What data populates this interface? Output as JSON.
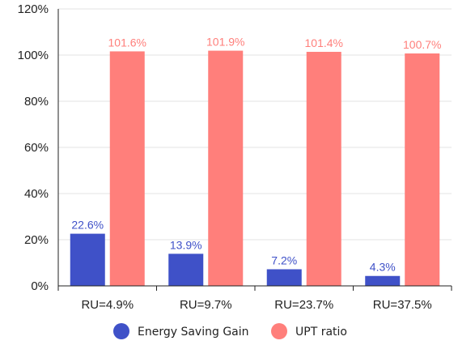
{
  "chart_data": {
    "type": "bar",
    "categories": [
      "RU=4.9%",
      "RU=9.7%",
      "RU=23.7%",
      "RU=37.5%"
    ],
    "series": [
      {
        "name": "Energy Saving Gain",
        "values": [
          22.6,
          13.9,
          7.2,
          4.3
        ],
        "labels": [
          "22.6%",
          "13.9%",
          "7.2%",
          "4.3%"
        ],
        "color": "#3f51c8",
        "label_color": "#3f51c8"
      },
      {
        "name": "UPT ratio",
        "values": [
          101.6,
          101.9,
          101.4,
          100.7
        ],
        "labels": [
          "101.6%",
          "101.9%",
          "101.4%",
          "100.7%"
        ],
        "color": "#ff7f7b",
        "label_color": "#ff7f7b"
      }
    ],
    "ylim": [
      0,
      120
    ],
    "yticks": [
      0,
      20,
      40,
      60,
      80,
      100,
      120
    ],
    "ytick_labels": [
      "0%",
      "20%",
      "40%",
      "60%",
      "80%",
      "100%",
      "120%"
    ],
    "grid": true,
    "legend": "bottom",
    "title": "",
    "xlabel": "",
    "ylabel": ""
  }
}
